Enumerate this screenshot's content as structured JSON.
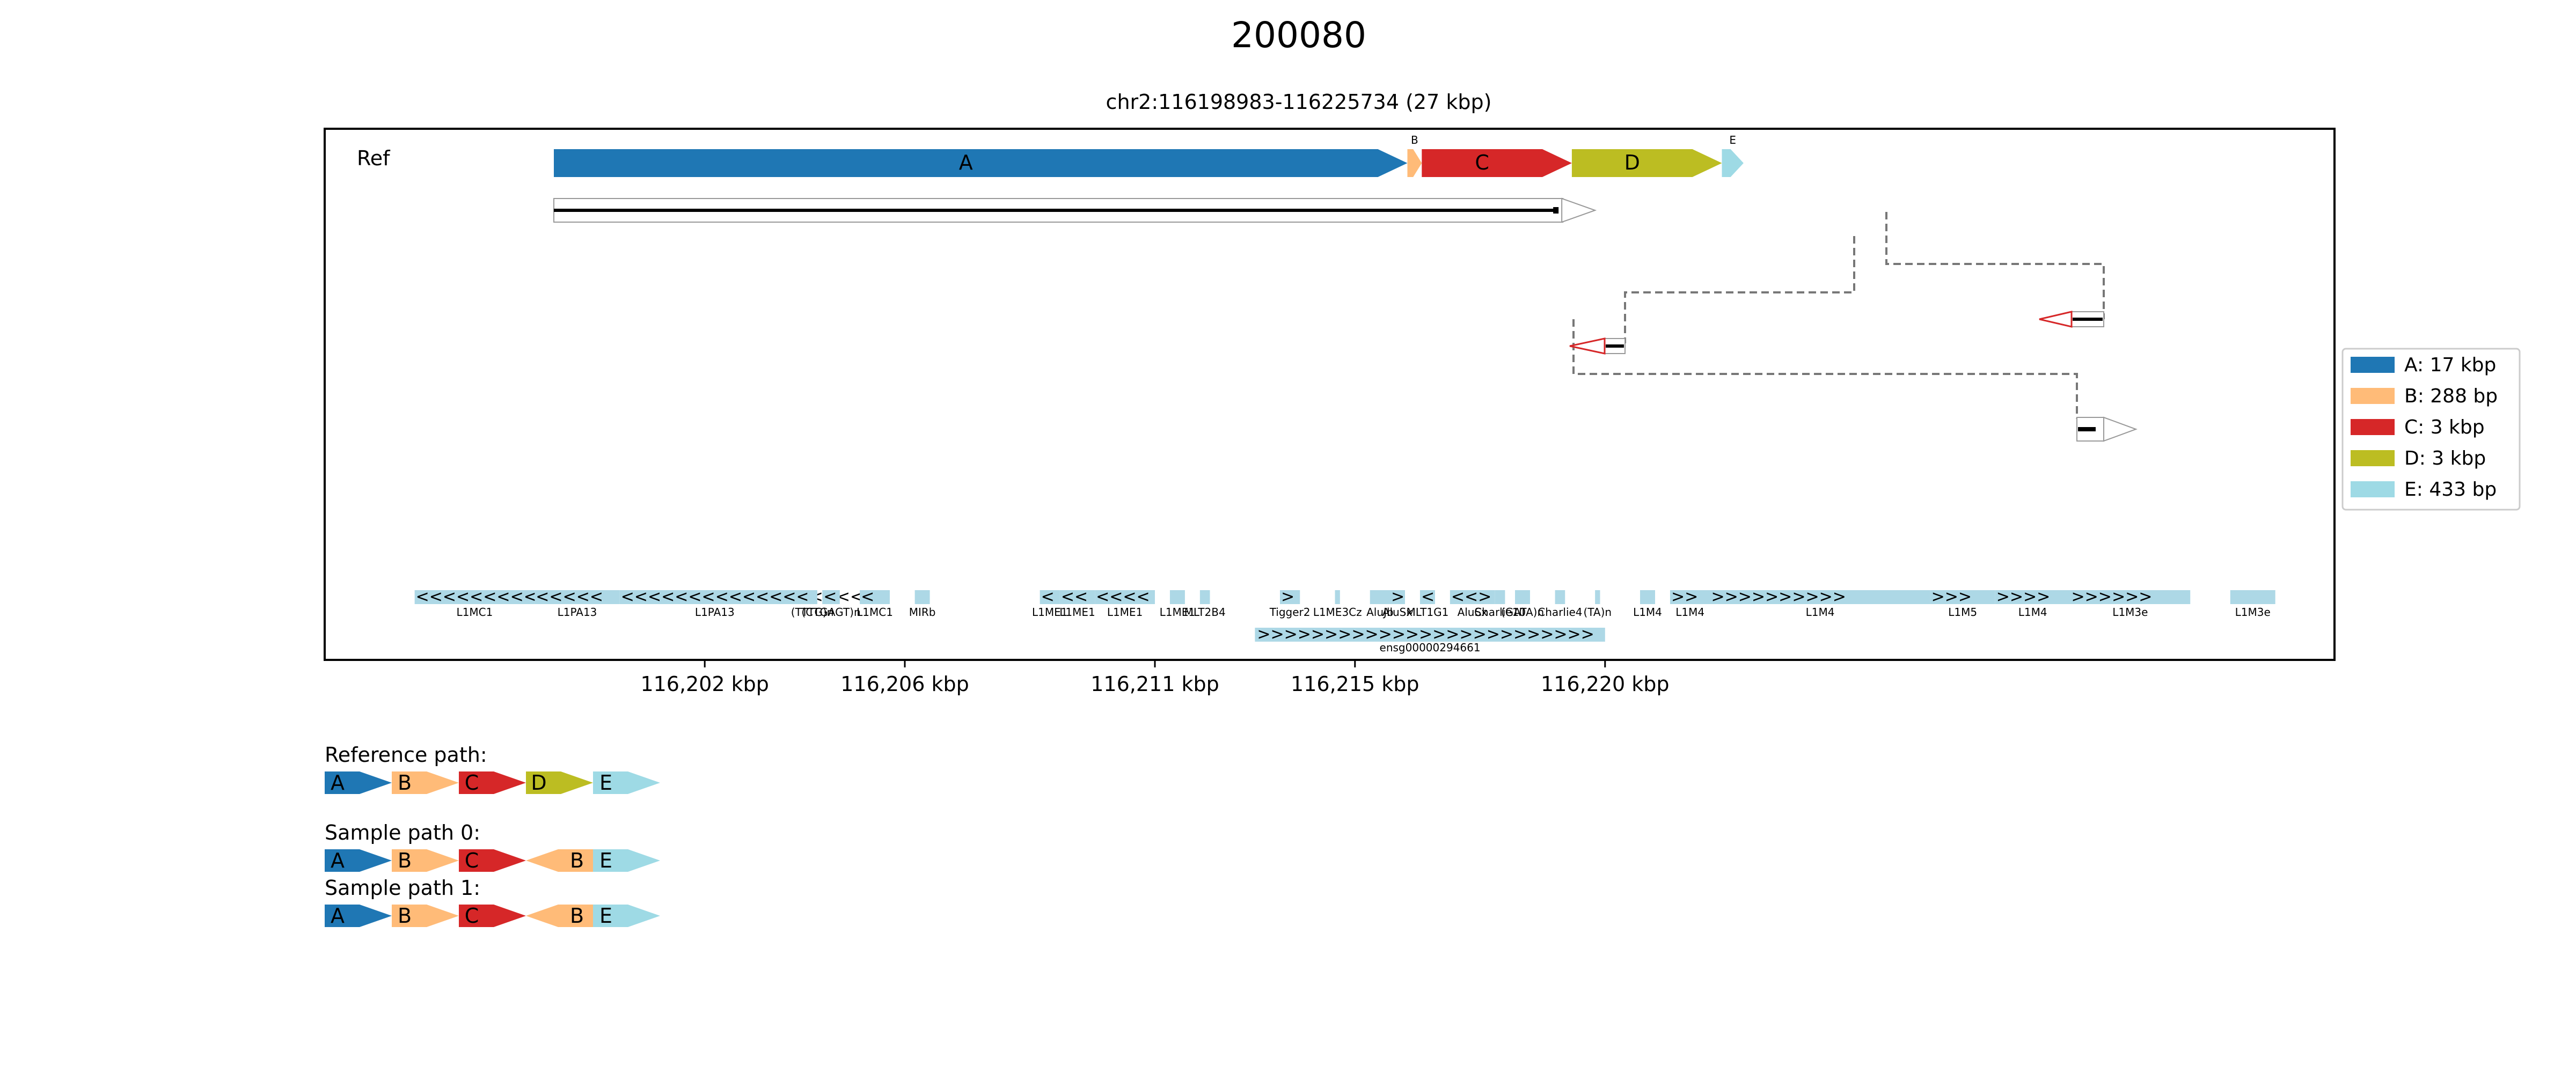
{
  "title": "200080",
  "region": "chr2:116198983-116225734 (27 kbp)",
  "track_label": "Ref",
  "colors": {
    "A": "#1f77b4",
    "B": "#ffbb78",
    "C": "#d62728",
    "D": "#bcbd22",
    "E": "#9edae5",
    "repeat": "#add8e6",
    "read_outline": "#999999",
    "read_reverse": "#d62728",
    "link": "#777777"
  },
  "blocks": [
    {
      "name": "A",
      "start": 116198983,
      "end": 116216048,
      "strand": "+"
    },
    {
      "name": "B",
      "start": 116216048,
      "end": 116216336,
      "strand": "+"
    },
    {
      "name": "C",
      "start": 116216336,
      "end": 116219336,
      "strand": "+"
    },
    {
      "name": "D",
      "start": 116219336,
      "end": 116222336,
      "strand": "+"
    },
    {
      "name": "E",
      "start": 116222336,
      "end": 116222769,
      "strand": "+"
    }
  ],
  "alignments": [
    {
      "start": 116198983,
      "end": 116219800,
      "strand": "+",
      "row": 0,
      "style": "forward"
    },
    {
      "start": 116222400,
      "end": 116223400,
      "strand": "-",
      "row": 1,
      "style": "reverse"
    },
    {
      "start": 116216048,
      "end": 116216800,
      "strand": "-",
      "row": 2,
      "style": "reverse"
    },
    {
      "start": 116222400,
      "end": 116223300,
      "strand": "+",
      "row": 3,
      "style": "forward"
    }
  ],
  "repeats": [
    {
      "start": 116196200,
      "end": 116198600,
      "label": "L1MC1",
      "arrows": "<<<<<<<<<<"
    },
    {
      "start": 116198600,
      "end": 116200300,
      "label": "L1PA13",
      "arrows": "<<<<<"
    },
    {
      "start": 116200300,
      "end": 116204100,
      "label": "L1PA13",
      "arrows": "<<<<<<<<<<<<<<<<<<"
    },
    {
      "start": 116204050,
      "end": 116204250,
      "label": "(TTTG)n",
      "arrows": ""
    },
    {
      "start": 116204350,
      "end": 116204700,
      "label": "(CTGAGT)n",
      "arrows": "<"
    },
    {
      "start": 116205100,
      "end": 116205700,
      "label": "L1MC1",
      "arrows": "<"
    },
    {
      "start": 116206200,
      "end": 116206500,
      "label": "MIRb",
      "arrows": ""
    },
    {
      "start": 116208700,
      "end": 116209100,
      "label": "L1ME1",
      "arrows": "<"
    },
    {
      "start": 116209100,
      "end": 116209800,
      "label": "L1ME1",
      "arrows": "<<"
    },
    {
      "start": 116209800,
      "end": 116211000,
      "label": "L1ME1",
      "arrows": "<<<<"
    },
    {
      "start": 116211300,
      "end": 116211600,
      "label": "L1ME1",
      "arrows": ""
    },
    {
      "start": 116211900,
      "end": 116212100,
      "label": "MLT2B4",
      "arrows": ""
    },
    {
      "start": 116213500,
      "end": 116213900,
      "label": "Tigger2",
      "arrows": ">"
    },
    {
      "start": 116214600,
      "end": 116214700,
      "label": "L1ME3Cz",
      "arrows": ""
    },
    {
      "start": 116215300,
      "end": 116215700,
      "label": "AluJb",
      "arrows": ""
    },
    {
      "start": 116215700,
      "end": 116216000,
      "label": "AluSx",
      "arrows": ">"
    },
    {
      "start": 116216300,
      "end": 116216600,
      "label": "MLT1G1",
      "arrows": "<"
    },
    {
      "start": 116216900,
      "end": 116217800,
      "label": "AluSx",
      "arrows": "<<>"
    },
    {
      "start": 116217800,
      "end": 116218000,
      "label": "Charlie10",
      "arrows": ""
    },
    {
      "start": 116218200,
      "end": 116218500,
      "label": "(GATA)n",
      "arrows": ""
    },
    {
      "start": 116219000,
      "end": 116219200,
      "label": "Charlie4",
      "arrows": ""
    },
    {
      "start": 116219800,
      "end": 116219900,
      "label": "(TA)n",
      "arrows": ""
    },
    {
      "start": 116220700,
      "end": 116221000,
      "label": "L1M4",
      "arrows": ""
    },
    {
      "start": 116221300,
      "end": 116222100,
      "label": "L1M4",
      "arrows": ">>"
    },
    {
      "start": 116222100,
      "end": 116226500,
      "label": "L1M4",
      "arrows": ">>>>>>>>>>"
    },
    {
      "start": 116226500,
      "end": 116227800,
      "label": "L1M5",
      "arrows": ">>>"
    },
    {
      "start": 116227800,
      "end": 116229300,
      "label": "L1M4",
      "arrows": ">>>>"
    },
    {
      "start": 116229300,
      "end": 116231700,
      "label": "L1M3e",
      "arrows": ">>>>>>"
    },
    {
      "start": 116232500,
      "end": 116233400,
      "label": "L1M3e",
      "arrows": ""
    }
  ],
  "genes": [
    {
      "start": 116213000,
      "end": 116220000,
      "label": "ensg00000294661",
      "arrows": ">>>>>>>>>>>>>>>>>>>>>>>>>"
    }
  ],
  "x_axis": {
    "ticks": [
      116202000,
      116206000,
      116211000,
      116215000,
      116220000
    ],
    "tick_labels": [
      "116,202 kbp",
      "116,206 kbp",
      "116,211 kbp",
      "116,215 kbp",
      "116,220 kbp"
    ]
  },
  "legend": {
    "placement": "right",
    "entries": [
      {
        "key": "A",
        "label": "A: 17 kbp"
      },
      {
        "key": "B",
        "label": "B: 288 bp"
      },
      {
        "key": "C",
        "label": "C: 3 kbp"
      },
      {
        "key": "D",
        "label": "D: 3 kbp"
      },
      {
        "key": "E",
        "label": "E: 433 bp"
      }
    ]
  },
  "paths": [
    {
      "label": "Reference path:",
      "segments": [
        {
          "name": "A",
          "strand": "+"
        },
        {
          "name": "B",
          "strand": "+"
        },
        {
          "name": "C",
          "strand": "+"
        },
        {
          "name": "D",
          "strand": "+"
        },
        {
          "name": "E",
          "strand": "+"
        }
      ]
    },
    {
      "label": "Sample path 0:",
      "segments": [
        {
          "name": "A",
          "strand": "+"
        },
        {
          "name": "B",
          "strand": "+"
        },
        {
          "name": "C",
          "strand": "+"
        },
        {
          "name": "B",
          "strand": "-"
        },
        {
          "name": "E",
          "strand": "+"
        }
      ]
    },
    {
      "label": "Sample path 1:",
      "segments": [
        {
          "name": "A",
          "strand": "+"
        },
        {
          "name": "B",
          "strand": "+"
        },
        {
          "name": "C",
          "strand": "+"
        },
        {
          "name": "B",
          "strand": "-"
        },
        {
          "name": "E",
          "strand": "+"
        }
      ]
    }
  ]
}
